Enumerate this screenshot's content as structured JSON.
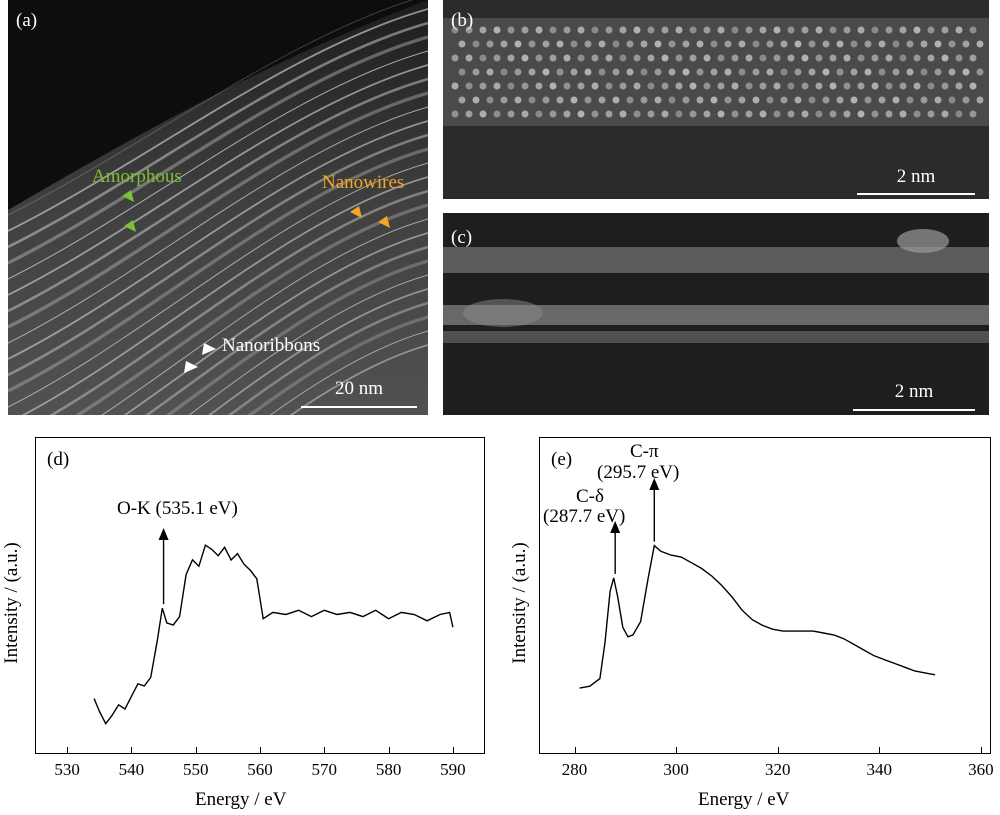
{
  "panels": {
    "a": {
      "label": "(a)",
      "scale": "20 nm",
      "annotations": {
        "amorphous": {
          "text": "Amorphous",
          "color": "#7cc035"
        },
        "nanowires": {
          "text": "Nanowires",
          "color": "#f5a623"
        },
        "nanoribbons": {
          "text": "Nanoribbons",
          "color": "#ffffff"
        }
      }
    },
    "b": {
      "label": "(b)",
      "scale": "2 nm"
    },
    "c": {
      "label": "(c)",
      "scale": "2 nm"
    },
    "d": {
      "label": "(d)",
      "xlabel": "Energy / eV",
      "ylabel": "Intensity / (a.u.)",
      "peak": "O-K (535.1 eV)"
    },
    "e": {
      "label": "(e)",
      "xlabel": "Energy / eV",
      "ylabel": "Intensity / (a.u.)",
      "peak1_line1": "C-δ",
      "peak1_line2": "(287.7 eV)",
      "peak2_line1": "C-π",
      "peak2_line2": "(295.7 eV)"
    }
  },
  "chart_data": [
    {
      "type": "line",
      "panel": "d",
      "xlabel": "Energy / eV",
      "ylabel": "Intensity / (a.u.)",
      "xlim": [
        525,
        595
      ],
      "xticks": [
        "530",
        "540",
        "550",
        "560",
        "570",
        "580",
        "590"
      ],
      "series": [
        {
          "x": [
            534.2,
            535,
            536,
            537,
            538,
            539,
            540,
            541,
            542,
            543,
            544,
            544.8,
            545.5,
            546.5,
            547.5,
            548.5,
            549.5,
            550.5,
            551.5,
            552.5,
            553.5,
            554.5,
            555.5,
            556.5,
            557.5,
            558.5,
            559.5,
            560.5,
            562,
            564,
            566,
            568,
            570,
            572,
            574,
            576,
            578,
            580,
            582,
            584,
            586,
            588,
            589.5,
            590
          ],
          "y": [
            0.15,
            0.09,
            0.03,
            0.07,
            0.12,
            0.1,
            0.16,
            0.22,
            0.21,
            0.25,
            0.42,
            0.58,
            0.51,
            0.5,
            0.54,
            0.74,
            0.81,
            0.78,
            0.88,
            0.86,
            0.83,
            0.87,
            0.81,
            0.84,
            0.79,
            0.76,
            0.72,
            0.53,
            0.56,
            0.55,
            0.57,
            0.54,
            0.57,
            0.55,
            0.56,
            0.54,
            0.57,
            0.53,
            0.56,
            0.55,
            0.52,
            0.55,
            0.56,
            0.49
          ]
        }
      ]
    },
    {
      "type": "line",
      "panel": "e",
      "xlabel": "Energy / eV",
      "ylabel": "Intensity / (a.u.)",
      "xlim": [
        273,
        362
      ],
      "xticks": [
        "280",
        "300",
        "320",
        "340",
        "360"
      ],
      "series": [
        {
          "x": [
            281,
            283,
            285,
            286,
            287,
            287.7,
            288.5,
            289.5,
            290.5,
            291.5,
            293,
            294.5,
            295.7,
            297,
            299,
            301,
            303,
            305,
            307,
            309,
            311,
            313,
            315,
            317,
            319,
            321,
            323,
            325,
            327,
            329,
            331,
            333,
            335,
            337,
            339,
            341,
            343,
            345,
            347,
            349,
            351
          ],
          "y": [
            0.01,
            0.02,
            0.06,
            0.25,
            0.52,
            0.59,
            0.49,
            0.33,
            0.28,
            0.29,
            0.36,
            0.59,
            0.76,
            0.73,
            0.71,
            0.7,
            0.67,
            0.64,
            0.6,
            0.55,
            0.49,
            0.42,
            0.37,
            0.34,
            0.32,
            0.31,
            0.31,
            0.31,
            0.31,
            0.3,
            0.29,
            0.27,
            0.24,
            0.21,
            0.18,
            0.16,
            0.14,
            0.12,
            0.1,
            0.09,
            0.08
          ]
        }
      ]
    }
  ]
}
